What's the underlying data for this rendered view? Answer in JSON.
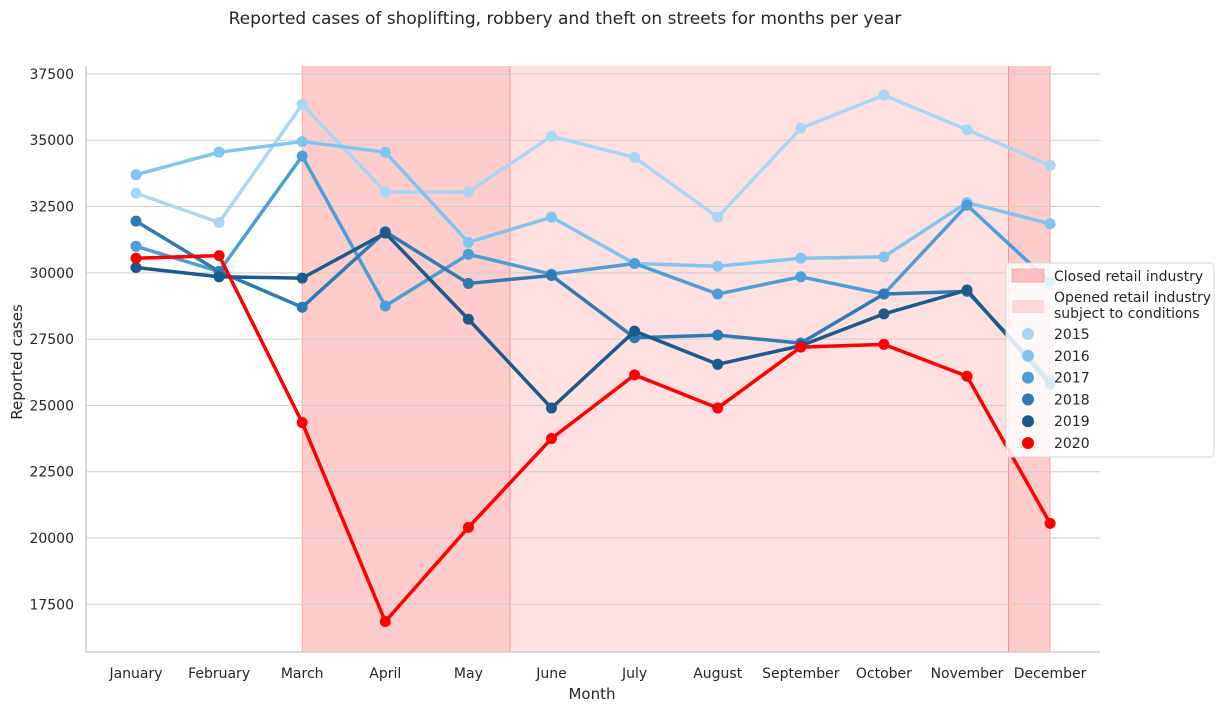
{
  "chart_data": {
    "type": "line",
    "title": "Reported cases of shoplifting, robbery and theft on streets for months per year",
    "xlabel": "Month",
    "ylabel": "Reported cases",
    "categories": [
      "January",
      "February",
      "March",
      "April",
      "May",
      "June",
      "July",
      "August",
      "September",
      "October",
      "November",
      "December"
    ],
    "ylim": [
      15700,
      37800
    ],
    "yticks": [
      17500,
      20000,
      22500,
      25000,
      27500,
      30000,
      32500,
      35000,
      37500
    ],
    "grid": "horizontal",
    "legend_position": "right",
    "bands": [
      {
        "name": "Closed retail industry",
        "from": "March",
        "to": "May/June boundary",
        "start_index": 2,
        "end_index": 4.5,
        "color": "#ff9999",
        "opacity": 0.5
      },
      {
        "name": "Opened retail industry\n subject to conditions",
        "start_index": 4.5,
        "end_index": 10.5,
        "color": "#ffcccc",
        "opacity": 0.6
      },
      {
        "name": "Closed retail industry",
        "start_index": 10.5,
        "end_index": 11,
        "color": "#ff9999",
        "opacity": 0.5
      }
    ],
    "series": [
      {
        "name": "2015",
        "color": "#a9d6f5",
        "values": [
          33000,
          31900,
          36350,
          33050,
          33050,
          35150,
          34350,
          32100,
          35450,
          36700,
          35400,
          34050
        ]
      },
      {
        "name": "2016",
        "color": "#80c4f0",
        "values": [
          33700,
          34550,
          34950,
          34550,
          31150,
          32100,
          30350,
          30250,
          30550,
          30600,
          32650,
          31850
        ]
      },
      {
        "name": "2017",
        "color": "#4a9fd9",
        "values": [
          31000,
          30050,
          34400,
          28750,
          30700,
          29950,
          30350,
          29200,
          29850,
          29200,
          32550,
          29650
        ]
      },
      {
        "name": "2018",
        "color": "#2e7ab5",
        "values": [
          31950,
          30050,
          28700,
          31550,
          29600,
          29900,
          27550,
          27650,
          27350,
          29200,
          29300,
          25950
        ]
      },
      {
        "name": "2019",
        "color": "#1a5a8c",
        "values": [
          30200,
          29850,
          29800,
          31500,
          28250,
          24900,
          27800,
          26550,
          27250,
          28450,
          29350,
          25800
        ]
      },
      {
        "name": "2020",
        "color": "#ff0000",
        "values": [
          30550,
          30650,
          24350,
          16850,
          20400,
          23750,
          26150,
          24900,
          27200,
          27300,
          26100,
          20550
        ]
      }
    ]
  }
}
